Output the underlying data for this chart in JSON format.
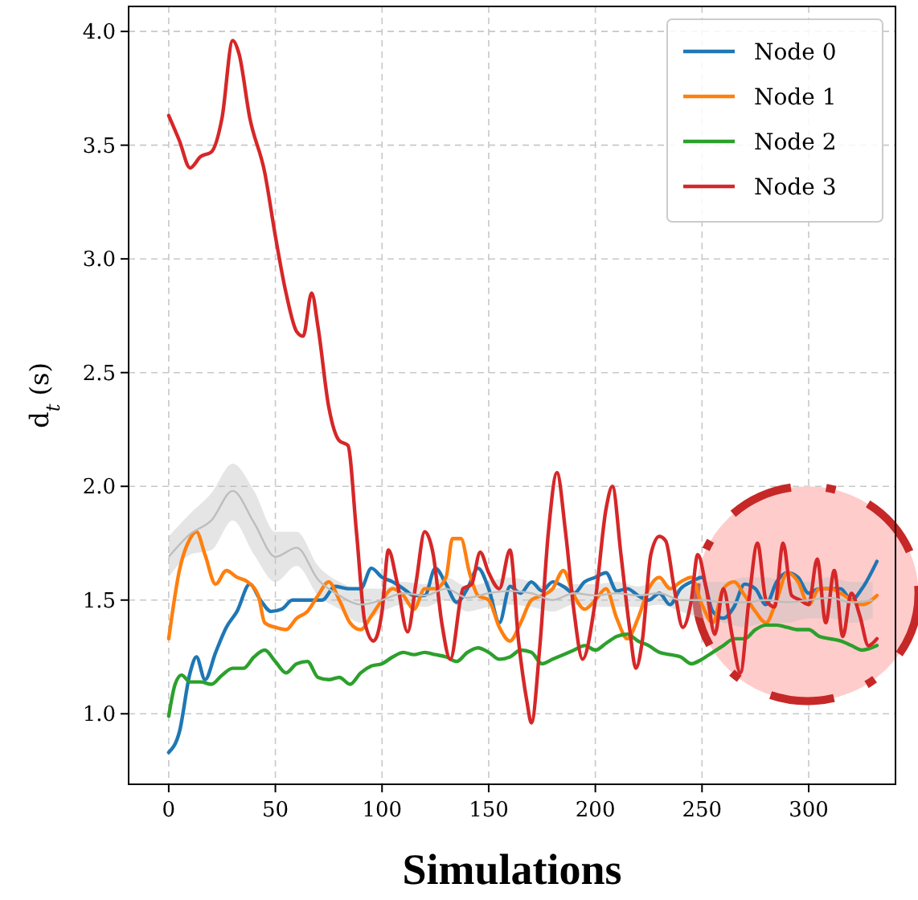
{
  "chart_data": {
    "type": "line",
    "xlabel": "Simulations",
    "ylabel": "d$_{t}$ (s)",
    "xlim": [
      -18.8,
      340.7
    ],
    "ylim": [
      0.69,
      4.11
    ],
    "xticks": [
      0,
      50,
      100,
      150,
      200,
      250,
      300
    ],
    "yticks": [
      {
        "value": 1,
        "label": "1.0"
      },
      1.5,
      {
        "value": 2,
        "label": "2.0"
      },
      2.5,
      {
        "value": 3,
        "label": "3.0"
      },
      3.5,
      {
        "value": 4,
        "label": "4.0"
      }
    ],
    "grid": true,
    "legend": "top right",
    "line_style": "solid",
    "series": [
      {
        "color": "#bdbdbd",
        "x": [
          0,
          10,
          20,
          30,
          40,
          50,
          60,
          70,
          80,
          90,
          100,
          110,
          120,
          130,
          140,
          150,
          160,
          170,
          180,
          190,
          200,
          210,
          220,
          230,
          240,
          250,
          260,
          270,
          280,
          290,
          300,
          310,
          320,
          330
        ],
        "values": [
          1.69,
          1.79,
          1.85,
          1.98,
          1.84,
          1.69,
          1.73,
          1.59,
          1.52,
          1.48,
          1.5,
          1.53,
          1.52,
          1.55,
          1.51,
          1.53,
          1.54,
          1.53,
          1.5,
          1.53,
          1.52,
          1.53,
          1.52,
          1.53,
          1.5,
          1.5,
          1.49,
          1.49,
          1.5,
          1.49,
          1.5,
          1.51,
          1.49,
          1.5
        ],
        "lower": [
          1.6,
          1.7,
          1.72,
          1.85,
          1.7,
          1.58,
          1.65,
          1.52,
          1.46,
          1.4,
          1.45,
          1.48,
          1.47,
          1.5,
          1.45,
          1.47,
          1.48,
          1.47,
          1.45,
          1.48,
          1.47,
          1.47,
          1.47,
          1.48,
          1.45,
          1.42,
          1.4,
          1.38,
          1.4,
          1.4,
          1.42,
          1.42,
          1.4,
          1.42
        ],
        "upper": [
          1.78,
          1.88,
          1.97,
          2.1,
          1.98,
          1.8,
          1.8,
          1.65,
          1.58,
          1.55,
          1.55,
          1.58,
          1.57,
          1.6,
          1.56,
          1.58,
          1.6,
          1.58,
          1.55,
          1.57,
          1.57,
          1.58,
          1.56,
          1.58,
          1.55,
          1.58,
          1.58,
          1.6,
          1.6,
          1.58,
          1.58,
          1.6,
          1.58,
          1.58
        ]
      },
      {
        "name": "Node 0",
        "color": "#1f77b4",
        "x": [
          0,
          5,
          10,
          13,
          17,
          22,
          27,
          32,
          38,
          43,
          48,
          53,
          58,
          65,
          72,
          78,
          84,
          90,
          95,
          100,
          105,
          110,
          115,
          120,
          125,
          130,
          135,
          140,
          145,
          150,
          155,
          160,
          165,
          170,
          175,
          180,
          185,
          190,
          195,
          200,
          205,
          210,
          215,
          220,
          225,
          230,
          235,
          240,
          245,
          250,
          255,
          260,
          265,
          270,
          275,
          280,
          285,
          290,
          295,
          300,
          305,
          310,
          315,
          320,
          325,
          332
        ],
        "values": [
          0.83,
          0.92,
          1.18,
          1.25,
          1.15,
          1.27,
          1.38,
          1.45,
          1.57,
          1.5,
          1.45,
          1.46,
          1.5,
          1.5,
          1.5,
          1.56,
          1.55,
          1.55,
          1.64,
          1.6,
          1.58,
          1.55,
          1.52,
          1.52,
          1.64,
          1.57,
          1.49,
          1.55,
          1.64,
          1.55,
          1.4,
          1.56,
          1.53,
          1.58,
          1.54,
          1.58,
          1.56,
          1.53,
          1.58,
          1.6,
          1.62,
          1.54,
          1.55,
          1.52,
          1.5,
          1.53,
          1.48,
          1.55,
          1.58,
          1.6,
          1.45,
          1.42,
          1.47,
          1.57,
          1.55,
          1.48,
          1.58,
          1.62,
          1.6,
          1.53,
          1.55,
          1.55,
          1.55,
          1.5,
          1.55,
          1.67
        ]
      },
      {
        "name": "Node 1",
        "color": "#ff7f0e",
        "x": [
          0,
          5,
          10,
          13,
          17,
          22,
          27,
          32,
          37,
          42,
          45,
          50,
          55,
          60,
          65,
          70,
          75,
          80,
          85,
          90,
          95,
          100,
          105,
          110,
          115,
          120,
          125,
          130,
          133,
          137,
          141,
          145,
          150,
          155,
          160,
          165,
          170,
          175,
          180,
          185,
          190,
          195,
          200,
          205,
          210,
          215,
          220,
          225,
          230,
          235,
          240,
          245,
          250,
          255,
          260,
          265,
          270,
          275,
          280,
          285,
          290,
          295,
          300,
          305,
          310,
          315,
          320,
          325,
          332
        ],
        "values": [
          1.33,
          1.63,
          1.77,
          1.8,
          1.7,
          1.57,
          1.63,
          1.6,
          1.58,
          1.52,
          1.4,
          1.38,
          1.37,
          1.42,
          1.45,
          1.52,
          1.58,
          1.5,
          1.4,
          1.37,
          1.43,
          1.5,
          1.55,
          1.52,
          1.46,
          1.55,
          1.55,
          1.6,
          1.77,
          1.77,
          1.62,
          1.52,
          1.5,
          1.38,
          1.32,
          1.4,
          1.5,
          1.52,
          1.55,
          1.63,
          1.52,
          1.46,
          1.5,
          1.55,
          1.42,
          1.33,
          1.42,
          1.55,
          1.6,
          1.55,
          1.58,
          1.6,
          1.48,
          1.4,
          1.55,
          1.58,
          1.52,
          1.45,
          1.4,
          1.5,
          1.62,
          1.58,
          1.48,
          1.55,
          1.55,
          1.53,
          1.5,
          1.48,
          1.52
        ]
      },
      {
        "name": "Node 2",
        "color": "#2ca02c",
        "x": [
          0,
          3,
          6,
          10,
          15,
          20,
          25,
          30,
          35,
          40,
          45,
          50,
          55,
          60,
          65,
          70,
          75,
          80,
          85,
          90,
          95,
          100,
          105,
          110,
          115,
          120,
          125,
          130,
          135,
          140,
          145,
          150,
          155,
          160,
          165,
          170,
          175,
          180,
          185,
          190,
          195,
          200,
          205,
          210,
          215,
          220,
          225,
          230,
          235,
          240,
          245,
          250,
          255,
          260,
          265,
          270,
          275,
          280,
          285,
          290,
          295,
          300,
          305,
          310,
          315,
          320,
          325,
          332
        ],
        "values": [
          0.99,
          1.13,
          1.17,
          1.14,
          1.14,
          1.13,
          1.17,
          1.2,
          1.2,
          1.25,
          1.28,
          1.23,
          1.18,
          1.22,
          1.23,
          1.16,
          1.15,
          1.16,
          1.13,
          1.18,
          1.21,
          1.22,
          1.25,
          1.27,
          1.26,
          1.27,
          1.26,
          1.25,
          1.23,
          1.27,
          1.29,
          1.27,
          1.24,
          1.25,
          1.28,
          1.27,
          1.22,
          1.24,
          1.26,
          1.28,
          1.3,
          1.28,
          1.31,
          1.34,
          1.35,
          1.32,
          1.3,
          1.27,
          1.26,
          1.25,
          1.22,
          1.24,
          1.27,
          1.3,
          1.33,
          1.33,
          1.37,
          1.39,
          1.39,
          1.38,
          1.37,
          1.37,
          1.34,
          1.33,
          1.32,
          1.3,
          1.28,
          1.3
        ]
      },
      {
        "name": "Node 3",
        "color": "#d62728",
        "x": [
          0,
          5,
          10,
          15,
          20,
          25,
          30,
          33,
          38,
          45,
          50,
          55,
          60,
          63,
          67,
          70,
          75,
          80,
          84,
          88,
          92,
          96,
          100,
          103,
          107,
          112,
          116,
          120,
          124,
          128,
          132,
          138,
          142,
          146,
          150,
          155,
          160,
          164,
          168,
          170,
          174,
          178,
          182,
          186,
          190,
          194,
          200,
          205,
          208,
          212,
          216,
          219,
          222,
          226,
          230,
          233,
          237,
          241,
          245,
          248,
          252,
          256,
          260,
          264,
          268,
          272,
          276,
          280,
          284,
          288,
          292,
          296,
          300,
          304,
          308,
          312,
          316,
          320,
          324,
          328,
          332
        ],
        "values": [
          3.63,
          3.52,
          3.4,
          3.45,
          3.47,
          3.62,
          3.96,
          3.9,
          3.62,
          3.38,
          3.1,
          2.85,
          2.68,
          2.66,
          2.85,
          2.7,
          2.35,
          2.2,
          2.18,
          1.8,
          1.4,
          1.32,
          1.45,
          1.72,
          1.58,
          1.36,
          1.58,
          1.8,
          1.7,
          1.4,
          1.24,
          1.55,
          1.57,
          1.71,
          1.62,
          1.55,
          1.72,
          1.32,
          1.05,
          0.96,
          1.3,
          1.8,
          2.06,
          1.8,
          1.45,
          1.24,
          1.5,
          1.9,
          2,
          1.7,
          1.38,
          1.2,
          1.32,
          1.7,
          1.78,
          1.76,
          1.55,
          1.38,
          1.5,
          1.7,
          1.55,
          1.35,
          1.55,
          1.35,
          1.18,
          1.5,
          1.75,
          1.5,
          1.47,
          1.75,
          1.52,
          1.5,
          1.48,
          1.68,
          1.4,
          1.63,
          1.34,
          1.53,
          1.43,
          1.3,
          1.33
        ]
      }
    ]
  }
}
